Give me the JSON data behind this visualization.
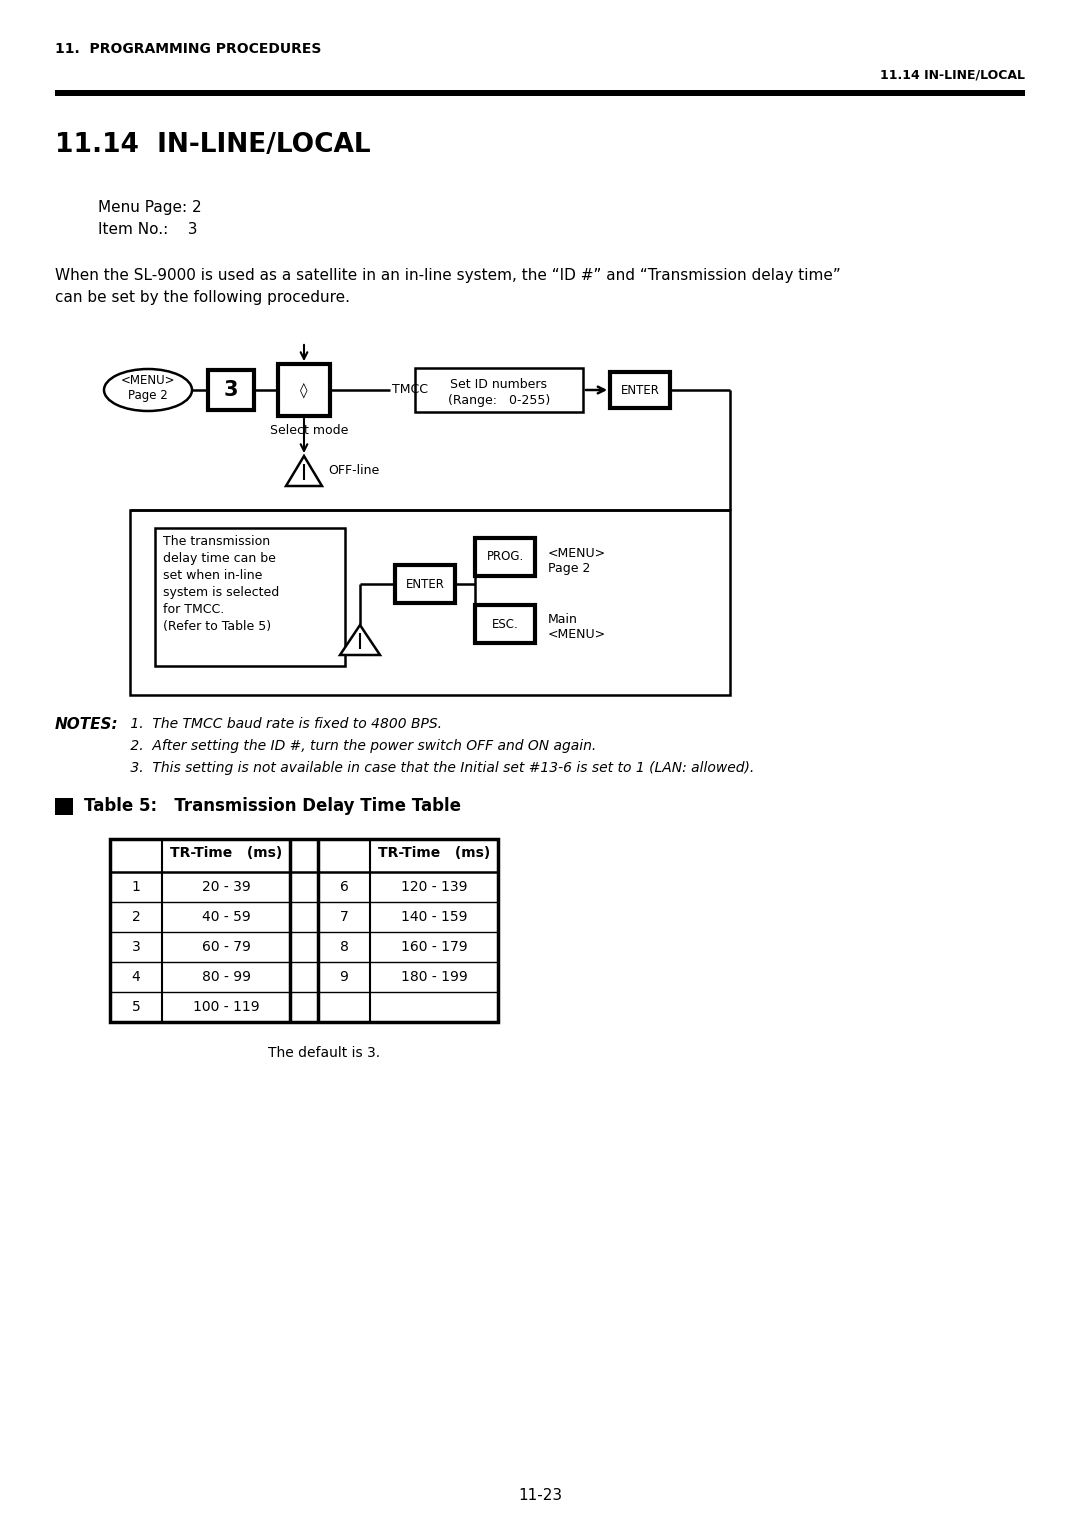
{
  "header_left": "11.  PROGRAMMING PROCEDURES",
  "header_right": "11.14 IN-LINE/LOCAL",
  "section_title": "11.14  IN-LINE/LOCAL",
  "menu_page": "Menu Page: 2",
  "item_no": "Item No.:    3",
  "intro_line1": "When the SL-9000 is used as a satellite in an in-line system, the “ID #” and “Transmission delay time”",
  "intro_line2": "can be set by the following procedure.",
  "notes_title": "NOTES:",
  "note1": "1.  The TMCC baud rate is fixed to 4800 BPS.",
  "note2": "2.  After setting the ID #, turn the power switch OFF and ON again.",
  "note3": "3.  This setting is not available in case that the Initial set #13-6 is set to 1 (LAN: allowed).",
  "table_title": "Table 5:   Transmission Delay Time Table",
  "table_header": "TR-Time   (ms)",
  "table_data_left": [
    [
      "1",
      "20 - 39"
    ],
    [
      "2",
      "40 - 59"
    ],
    [
      "3",
      "60 - 79"
    ],
    [
      "4",
      "80 - 99"
    ],
    [
      "5",
      "100 - 119"
    ]
  ],
  "table_data_right": [
    [
      "6",
      "120 - 139"
    ],
    [
      "7",
      "140 - 159"
    ],
    [
      "8",
      "160 - 179"
    ],
    [
      "9",
      "180 - 199"
    ],
    [
      "",
      ""
    ]
  ],
  "table_default": "The default is 3.",
  "page_number": "11-23"
}
